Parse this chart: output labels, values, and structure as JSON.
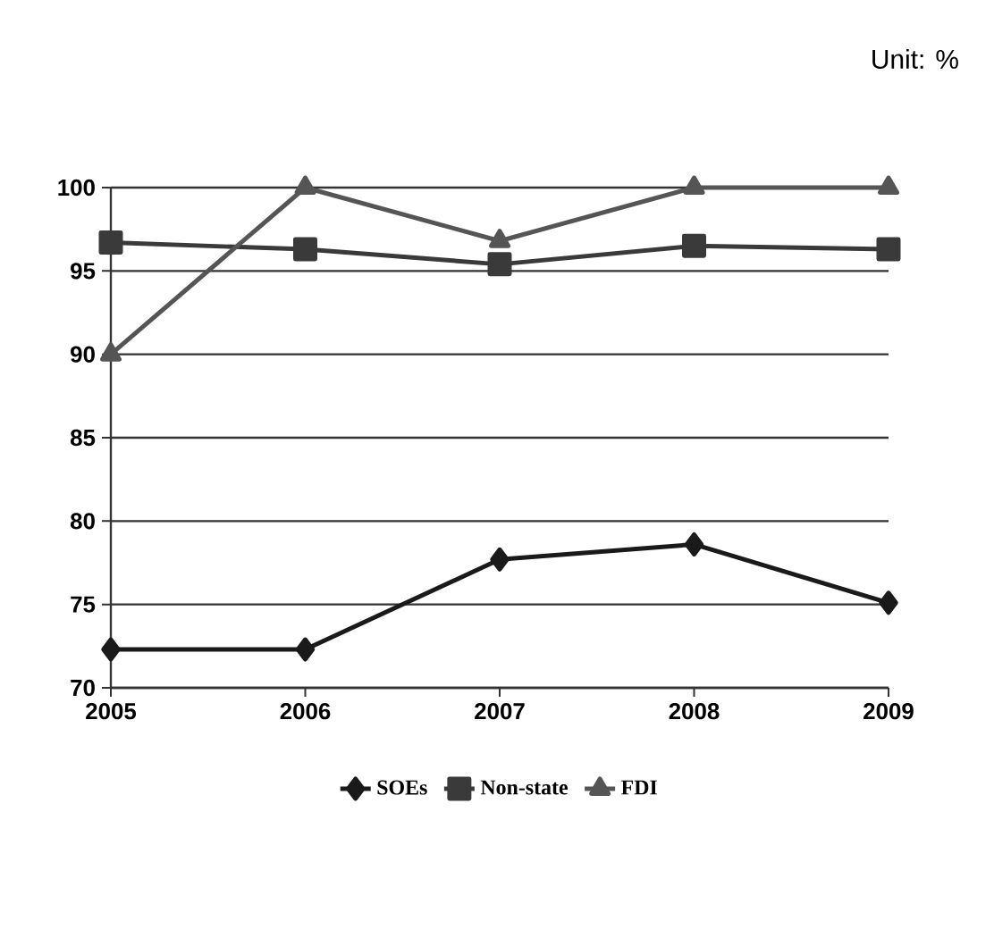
{
  "chart_data": {
    "type": "line",
    "categories": [
      "2005",
      "2006",
      "2007",
      "2008",
      "2009"
    ],
    "series": [
      {
        "name": "SOEs",
        "color": "#1a1a1a",
        "marker": "diamond",
        "values": [
          72.3,
          72.3,
          77.7,
          78.6,
          75.1
        ]
      },
      {
        "name": "Non-state",
        "color": "#3a3a3a",
        "marker": "square",
        "values": [
          96.7,
          96.3,
          95.4,
          96.5,
          96.3
        ]
      },
      {
        "name": "FDI",
        "color": "#555555",
        "marker": "triangle",
        "values": [
          90,
          100,
          96.8,
          100,
          100
        ]
      }
    ],
    "ylim": [
      70,
      100
    ],
    "yticks": [
      70,
      75,
      80,
      85,
      90,
      95,
      100
    ],
    "grid": "y",
    "legend": "bottom",
    "line_style": "solid",
    "annotations": [
      "Unit: %"
    ]
  }
}
